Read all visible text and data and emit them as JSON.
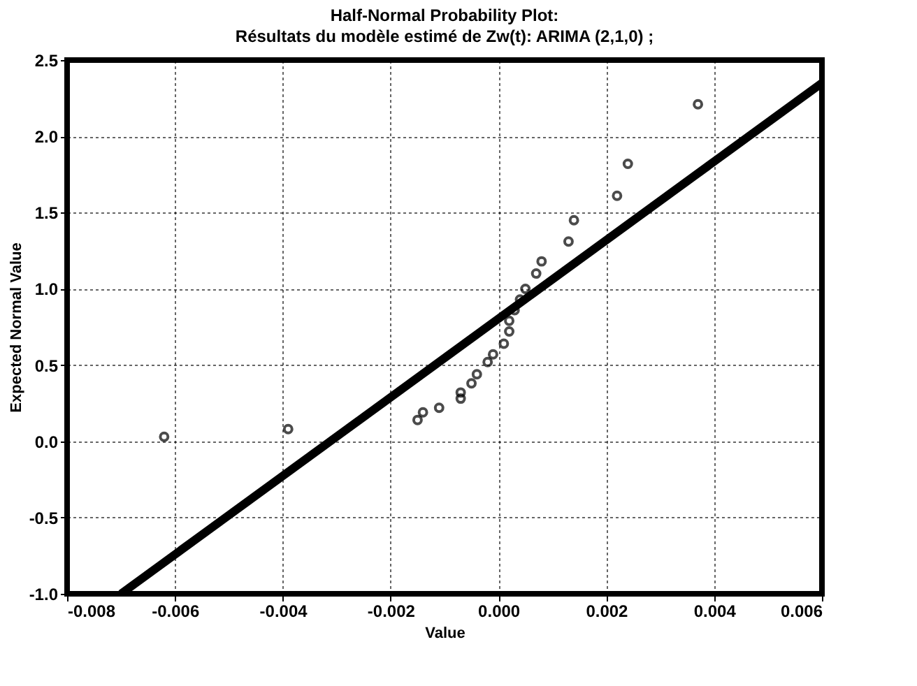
{
  "chart_data": {
    "type": "scatter",
    "title": "Half-Normal Probability Plot:",
    "subtitle": "Résultats du modèle estimé de Zw(t): ARIMA (2,1,0) ;",
    "xlabel": "Value",
    "ylabel": "Expected Normal Value",
    "xlim": [
      -0.008,
      0.006
    ],
    "xticks": [
      {
        "value": -0.008,
        "label": "-0.008"
      },
      {
        "value": -0.006,
        "label": "-0.006"
      },
      {
        "value": -0.004,
        "label": "-0.004"
      },
      {
        "value": -0.002,
        "label": "-0.002"
      },
      {
        "value": 0,
        "label": "0.000"
      },
      {
        "value": 0.002,
        "label": "0.002"
      },
      {
        "value": 0.004,
        "label": "0.004"
      },
      {
        "value": 0.006,
        "label": "0.006"
      }
    ],
    "ylim": [
      -1.0,
      2.5
    ],
    "yticks": [
      {
        "value": -1.0,
        "label": "-1.0"
      },
      {
        "value": -0.5,
        "label": "-0.5"
      },
      {
        "value": 0,
        "label": "0.0"
      },
      {
        "value": 0.5,
        "label": "0.5"
      },
      {
        "value": 1.0,
        "label": "1.0"
      },
      {
        "value": 1.5,
        "label": "1.5"
      },
      {
        "value": 2.0,
        "label": "2.0"
      },
      {
        "value": 2.5,
        "label": "2.5"
      }
    ],
    "grid": true,
    "marker": "circle",
    "series": [
      {
        "color": "#000000",
        "x": [
          -0.0062,
          -0.0039,
          -0.0015,
          -0.0014,
          -0.0011,
          -0.0007,
          -0.0007,
          -0.0005,
          -0.0004,
          -0.0002,
          -0.0001,
          0.0001,
          0.0002,
          0.0002,
          0.0003,
          0.0004,
          0.0005,
          0.0007,
          0.0008,
          0.0013,
          0.0014,
          0.0022,
          0.0024,
          0.0037
        ],
        "values": [
          0.03,
          0.08,
          0.14,
          0.19,
          0.22,
          0.28,
          0.32,
          0.38,
          0.44,
          0.52,
          0.57,
          0.64,
          0.72,
          0.79,
          0.86,
          0.93,
          1.0,
          1.1,
          1.18,
          1.31,
          1.45,
          1.61,
          1.82,
          2.21
        ]
      },
      {
        "type": "line",
        "color": "#000000",
        "marker": "none",
        "line_style": "solid",
        "x": [
          -0.007,
          0.006
        ],
        "values": [
          -1.0,
          2.35
        ]
      }
    ]
  }
}
